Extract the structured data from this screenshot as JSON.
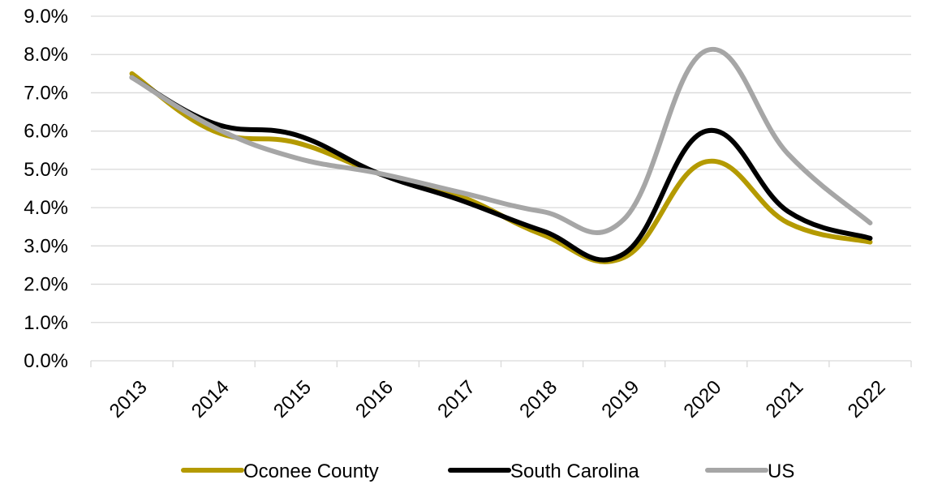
{
  "chart_data": {
    "type": "line",
    "title": "",
    "xlabel": "",
    "ylabel": "",
    "categories": [
      "2013",
      "2014",
      "2015",
      "2016",
      "2017",
      "2018",
      "2019",
      "2020",
      "2021",
      "2022"
    ],
    "ylim": [
      0,
      9
    ],
    "yticks": [
      "0.0%",
      "1.0%",
      "2.0%",
      "3.0%",
      "4.0%",
      "5.0%",
      "6.0%",
      "7.0%",
      "8.0%",
      "9.0%"
    ],
    "grid": true,
    "legend_position": "bottom",
    "series": [
      {
        "name": "Oconee County",
        "color": "#b49a00",
        "values": [
          7.5,
          6.0,
          5.7,
          4.9,
          4.3,
          3.3,
          2.7,
          5.2,
          3.6,
          3.1
        ]
      },
      {
        "name": "South Carolina",
        "color": "#000000",
        "values": [
          7.4,
          6.2,
          5.9,
          4.9,
          4.2,
          3.4,
          2.8,
          6.0,
          3.9,
          3.2
        ]
      },
      {
        "name": "US",
        "color": "#a6a6a6",
        "values": [
          7.4,
          6.1,
          5.3,
          4.9,
          4.4,
          3.9,
          3.7,
          8.1,
          5.4,
          3.6
        ]
      }
    ]
  }
}
